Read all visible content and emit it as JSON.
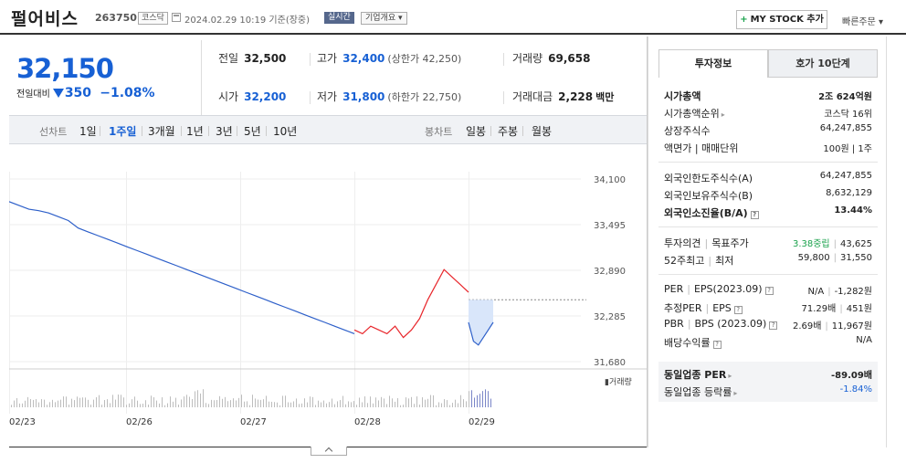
{
  "header": {
    "stock_name": "펄어비스",
    "stock_code": "263750",
    "market": "코스닥",
    "date": "2024.02.29 10:19 기준(장중)",
    "realtime": "실시간",
    "overview": "기업개요 ▾",
    "mystock": "MY STOCK 추가",
    "quick_order": "빠른주문 ▾"
  },
  "summary": {
    "price": "32,150",
    "change_label": "전일대비",
    "change_amount": "350",
    "change_pct": "−1.08%"
  },
  "stats": {
    "prev_close_label": "전일",
    "prev_close": "32,500",
    "high_label": "고가",
    "high": "32,400",
    "upper_limit": "(상한가 42,250)",
    "volume_label": "거래량",
    "volume": "69,658",
    "open_label": "시가",
    "open": "32,200",
    "low_label": "저가",
    "low": "31,800",
    "lower_limit": "(하한가 22,750)",
    "amount_label": "거래대금",
    "amount": "2,228",
    "amount_unit": "백만"
  },
  "period": {
    "line_label": "선차트",
    "line_items": [
      "1일",
      "1주일",
      "3개월",
      "1년",
      "3년",
      "5년",
      "10년"
    ],
    "selected": "1주일",
    "candle_label": "봉차트",
    "candle_items": [
      "일봉",
      "주봉",
      "월봉"
    ]
  },
  "chart_data": {
    "type": "line",
    "y_ticks": [
      "34,100",
      "33,495",
      "32,890",
      "32,285",
      "31,680"
    ],
    "ylim": [
      31680,
      34100
    ],
    "x_labels": [
      "02/23",
      "02/26",
      "02/27",
      "02/28",
      "02/29"
    ],
    "prev_close": 32500,
    "volume_label": "거래량",
    "series": [
      {
        "color": "#2d5fc9",
        "values": [
          33800,
          33750,
          33700,
          33680,
          33650,
          33600,
          33550,
          33450,
          33400,
          33350,
          33300,
          33250,
          33200,
          33150,
          33100,
          33050,
          33000,
          32950,
          32900,
          32850,
          32800,
          32750,
          32700,
          32650,
          32600,
          32550,
          32500,
          32450,
          32400,
          32350,
          32300,
          32250,
          32200,
          32150,
          32100,
          32050
        ]
      },
      {
        "color": "#e8262b",
        "values": [
          32100,
          32050,
          32150,
          32100,
          32050,
          32150,
          32000,
          32100,
          32250,
          32500,
          32700,
          32900,
          32800,
          32700,
          32600
        ]
      },
      {
        "color": "#2d5fc9",
        "values": [
          32200,
          31950,
          31900,
          32000,
          32100,
          32200
        ]
      }
    ]
  },
  "panel": {
    "tab_invest": "투자정보",
    "tab_hoga": "호가 10단계",
    "rows1": [
      {
        "l": "시가총액",
        "r": "2조 624억원",
        "bold": true
      },
      {
        "l": "시가총액순위",
        "r": "코스닥 16위"
      },
      {
        "l": "상장주식수",
        "r": "64,247,855"
      },
      {
        "l": "액면가 | 매매단위",
        "r": "100원 | 1주"
      }
    ],
    "rows2": [
      {
        "l": "외국인한도주식수(A)",
        "r": "64,247,855"
      },
      {
        "l": "외국인보유주식수(B)",
        "r": "8,632,129"
      },
      {
        "l": "외국인소진율(B/A)",
        "r": "13.44%",
        "bold": true
      }
    ],
    "opinion_label": "투자의견",
    "target_label": "목표주가",
    "opinion": "3.38중립",
    "target": "43,625",
    "w52_label": "52주최고",
    "w52_low_label": "최저",
    "w52_high": "59,800",
    "w52_low": "31,550",
    "per_label": "PER",
    "eps_label": "EPS(2023.09)",
    "per": "N/A",
    "eps": "-1,282원",
    "eper_label": "추정PER",
    "eeps_label": "EPS",
    "eper": "71.29배",
    "eeps": "451원",
    "pbr_label": "PBR",
    "bps_label": "BPS (2023.09)",
    "pbr": "2.69배",
    "bps": "11,967원",
    "div_label": "배당수익률",
    "div": "N/A",
    "peer_per_label": "동일업종 PER",
    "peer_per": "-89.09배",
    "peer_rate_label": "동일업종 등락률",
    "peer_rate": "-1.84%"
  }
}
